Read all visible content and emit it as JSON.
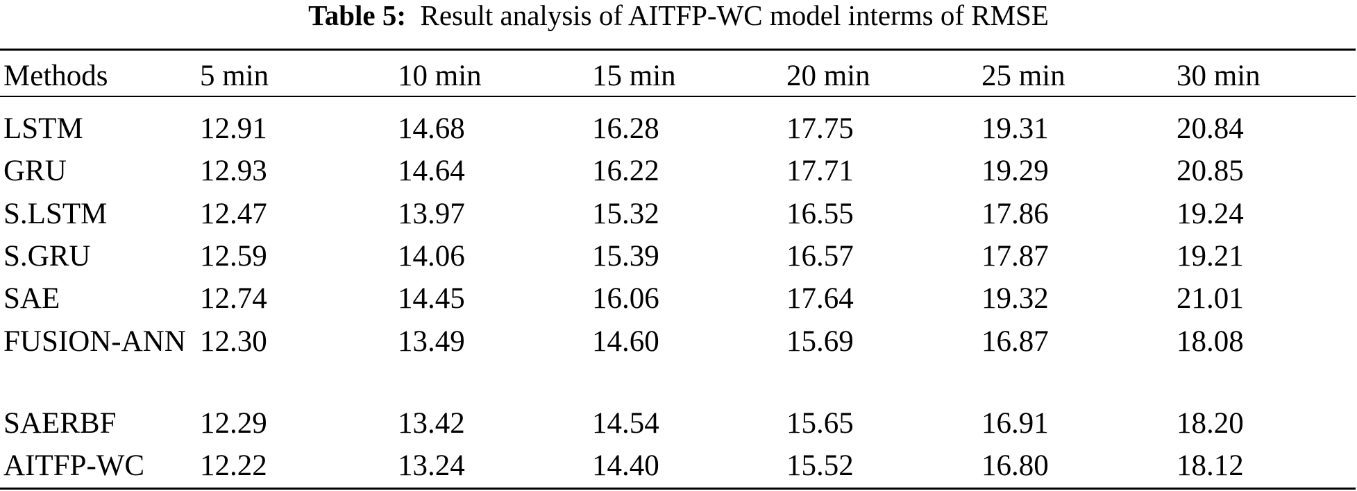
{
  "caption": {
    "label": "Table 5:",
    "text": "Result analysis of AITFP-WC model interms of RMSE"
  },
  "table": {
    "headers": [
      "Methods",
      "5 min",
      "10 min",
      "15 min",
      "20 min",
      "25 min",
      "30 min"
    ],
    "rows": [
      {
        "method": "LSTM",
        "values": [
          "12.91",
          "14.68",
          "16.28",
          "17.75",
          "19.31",
          "20.84"
        ]
      },
      {
        "method": "GRU",
        "values": [
          "12.93",
          "14.64",
          "16.22",
          "17.71",
          "19.29",
          "20.85"
        ]
      },
      {
        "method": "S.LSTM",
        "values": [
          "12.47",
          "13.97",
          "15.32",
          "16.55",
          "17.86",
          "19.24"
        ]
      },
      {
        "method": "S.GRU",
        "values": [
          "12.59",
          "14.06",
          "15.39",
          "16.57",
          "17.87",
          "19.21"
        ]
      },
      {
        "method": "SAE",
        "values": [
          "12.74",
          "14.45",
          "16.06",
          "17.64",
          "19.32",
          "21.01"
        ]
      },
      {
        "method": "FUSION-ANN",
        "values": [
          "12.30",
          "13.49",
          "14.60",
          "15.69",
          "16.87",
          "18.08"
        ]
      },
      {
        "method": "SAERBF",
        "values": [
          "12.29",
          "13.42",
          "14.54",
          "15.65",
          "16.91",
          "18.20"
        ]
      },
      {
        "method": "AITFP-WC",
        "values": [
          "12.22",
          "13.24",
          "14.40",
          "15.52",
          "16.80",
          "18.12"
        ]
      }
    ]
  }
}
